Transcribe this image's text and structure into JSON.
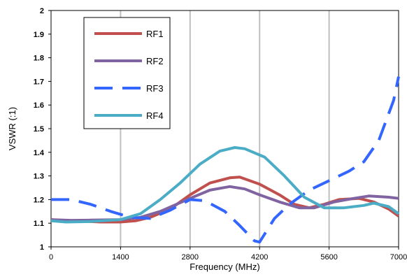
{
  "chart_data": {
    "type": "line",
    "xlabel": "Frequency (MHz)",
    "ylabel": "VSWR (:1)",
    "xlim": [
      0,
      7000
    ],
    "ylim": [
      1,
      2
    ],
    "xticks": [
      0,
      1400,
      2800,
      4200,
      5600,
      7000
    ],
    "yticks": [
      1,
      1.1,
      1.2,
      1.3,
      1.4,
      1.5,
      1.6,
      1.7,
      1.8,
      1.9,
      2
    ],
    "ytick_labels": [
      "1",
      "1.1",
      "1.2",
      "1.3",
      "1.4",
      "1.5",
      "1.6",
      "1.7",
      "1.8",
      "1.9",
      "2"
    ],
    "grid": "vertical",
    "legend_position": "top-left",
    "series": [
      {
        "name": "RF1",
        "color": "#c0504d",
        "style": "solid",
        "points": [
          [
            0,
            1.115
          ],
          [
            300,
            1.11
          ],
          [
            700,
            1.108
          ],
          [
            1000,
            1.105
          ],
          [
            1400,
            1.105
          ],
          [
            1700,
            1.11
          ],
          [
            2000,
            1.125
          ],
          [
            2400,
            1.16
          ],
          [
            2800,
            1.22
          ],
          [
            3200,
            1.27
          ],
          [
            3600,
            1.292
          ],
          [
            3800,
            1.295
          ],
          [
            4200,
            1.265
          ],
          [
            4600,
            1.22
          ],
          [
            4900,
            1.18
          ],
          [
            5200,
            1.165
          ],
          [
            5500,
            1.18
          ],
          [
            5800,
            1.2
          ],
          [
            6200,
            1.205
          ],
          [
            6500,
            1.19
          ],
          [
            6800,
            1.16
          ],
          [
            7000,
            1.13
          ]
        ]
      },
      {
        "name": "RF2",
        "color": "#8064a2",
        "style": "solid",
        "points": [
          [
            0,
            1.115
          ],
          [
            400,
            1.112
          ],
          [
            800,
            1.113
          ],
          [
            1400,
            1.115
          ],
          [
            1800,
            1.125
          ],
          [
            2200,
            1.15
          ],
          [
            2800,
            1.205
          ],
          [
            3200,
            1.24
          ],
          [
            3600,
            1.255
          ],
          [
            3900,
            1.245
          ],
          [
            4200,
            1.22
          ],
          [
            4600,
            1.19
          ],
          [
            5000,
            1.165
          ],
          [
            5300,
            1.165
          ],
          [
            5700,
            1.19
          ],
          [
            6100,
            1.205
          ],
          [
            6400,
            1.215
          ],
          [
            6800,
            1.21
          ],
          [
            7000,
            1.205
          ]
        ]
      },
      {
        "name": "RF3",
        "color": "#3366ff",
        "style": "dashed",
        "points": [
          [
            0,
            1.2
          ],
          [
            400,
            1.2
          ],
          [
            800,
            1.18
          ],
          [
            1200,
            1.15
          ],
          [
            1600,
            1.125
          ],
          [
            2000,
            1.12
          ],
          [
            2400,
            1.155
          ],
          [
            2800,
            1.2
          ],
          [
            3100,
            1.195
          ],
          [
            3500,
            1.15
          ],
          [
            3800,
            1.09
          ],
          [
            4100,
            1.025
          ],
          [
            4200,
            1.02
          ],
          [
            4500,
            1.12
          ],
          [
            4800,
            1.18
          ],
          [
            5200,
            1.24
          ],
          [
            5600,
            1.28
          ],
          [
            6000,
            1.32
          ],
          [
            6300,
            1.36
          ],
          [
            6600,
            1.45
          ],
          [
            6900,
            1.62
          ],
          [
            7000,
            1.72
          ]
        ]
      },
      {
        "name": "RF4",
        "color": "#4bacc6",
        "style": "solid",
        "points": [
          [
            0,
            1.11
          ],
          [
            300,
            1.105
          ],
          [
            800,
            1.107
          ],
          [
            1400,
            1.115
          ],
          [
            1800,
            1.14
          ],
          [
            2200,
            1.2
          ],
          [
            2600,
            1.27
          ],
          [
            3000,
            1.35
          ],
          [
            3400,
            1.405
          ],
          [
            3700,
            1.42
          ],
          [
            3900,
            1.415
          ],
          [
            4300,
            1.38
          ],
          [
            4700,
            1.3
          ],
          [
            5100,
            1.21
          ],
          [
            5500,
            1.165
          ],
          [
            5900,
            1.165
          ],
          [
            6300,
            1.175
          ],
          [
            6500,
            1.185
          ],
          [
            6800,
            1.17
          ],
          [
            7000,
            1.14
          ]
        ]
      }
    ]
  }
}
